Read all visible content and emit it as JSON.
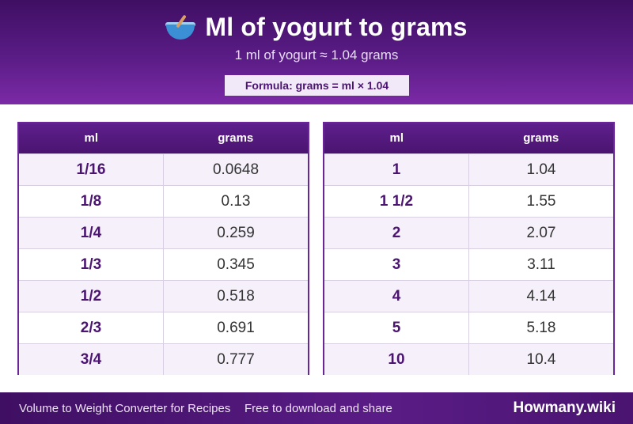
{
  "header": {
    "title": "Ml of yogurt to grams",
    "subtitle": "1 ml of yogurt ≈ 1.04 grams",
    "formula": "Formula: grams = ml × 1.04",
    "icon": "bowl-with-spoon-icon"
  },
  "tables": [
    {
      "col1": "ml",
      "col2": "grams",
      "rows": [
        {
          "ml": "1/16",
          "grams": "0.0648"
        },
        {
          "ml": "1/8",
          "grams": "0.13"
        },
        {
          "ml": "1/4",
          "grams": "0.259"
        },
        {
          "ml": "1/3",
          "grams": "0.345"
        },
        {
          "ml": "1/2",
          "grams": "0.518"
        },
        {
          "ml": "2/3",
          "grams": "0.691"
        },
        {
          "ml": "3/4",
          "grams": "0.777"
        }
      ]
    },
    {
      "col1": "ml",
      "col2": "grams",
      "rows": [
        {
          "ml": "1",
          "grams": "1.04"
        },
        {
          "ml": "1 1/2",
          "grams": "1.55"
        },
        {
          "ml": "2",
          "grams": "2.07"
        },
        {
          "ml": "3",
          "grams": "3.11"
        },
        {
          "ml": "4",
          "grams": "4.14"
        },
        {
          "ml": "5",
          "grams": "5.18"
        },
        {
          "ml": "10",
          "grams": "10.4"
        }
      ]
    }
  ],
  "footer": {
    "left": "Volume to Weight Converter for Recipes",
    "middle": "Free to download and share",
    "brand": "Howmany.wiki"
  },
  "colors": {
    "primary": "#4a1470",
    "header_end": "#7b2aa6",
    "row_alt": "#f5f0fa"
  }
}
